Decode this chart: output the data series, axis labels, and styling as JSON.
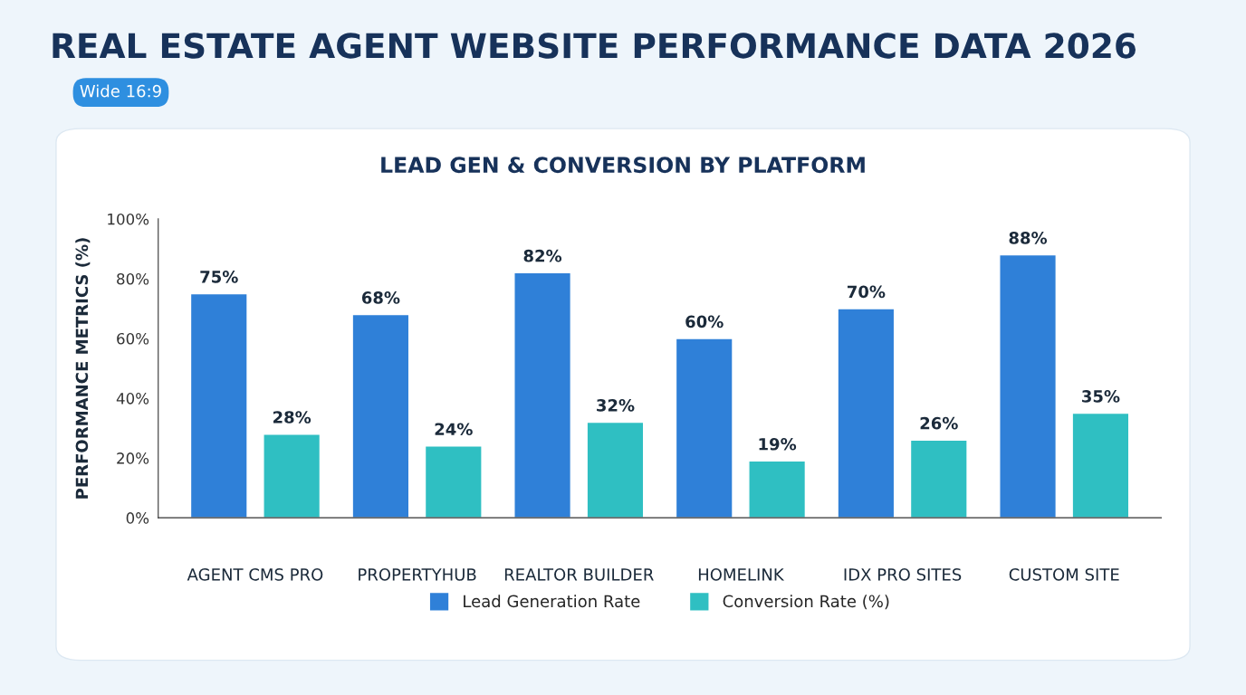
{
  "chart_data": {
    "type": "bar",
    "title": "REAL ESTATE AGENT WEBSITE PERFORMANCE DATA 2026",
    "subtitle": "LEAD GEN & CONVERSION BY PLATFORM",
    "ylabel": "PERFORMANCE METRICS (%)",
    "annotations": [
      "Wide 16:9"
    ],
    "categories": [
      "AGENT CMS PRO",
      "PROPERTYHUB",
      "REALTOR BUILDER",
      "HOMELINK",
      "IDX PRO SITES",
      "CUSTOM SITE"
    ],
    "series": [
      {
        "name": "Lead Generation Rate",
        "color": "#2f80d8",
        "values": [
          75,
          68,
          82,
          60,
          70,
          88
        ],
        "value_labels": [
          "75%",
          "68%",
          "82%",
          "60%",
          "70%",
          "88%"
        ]
      },
      {
        "name": "Conversion Rate (%)",
        "color": "#2fbfc2",
        "values": [
          28,
          24,
          32,
          19,
          26,
          35
        ],
        "value_labels": [
          "28%",
          "24%",
          "32%",
          "19%",
          "26%",
          "35%"
        ]
      }
    ],
    "ylim": [
      0,
      100
    ],
    "yticks": [
      {
        "value": 0,
        "label": "0%"
      },
      {
        "value": 20,
        "label": "20%"
      },
      {
        "value": 40,
        "label": "40%"
      },
      {
        "value": 60,
        "label": "60%"
      },
      {
        "value": 80,
        "label": "80%"
      },
      {
        "value": 100,
        "label": "100%"
      }
    ],
    "grid": false,
    "legend": "bottom"
  }
}
